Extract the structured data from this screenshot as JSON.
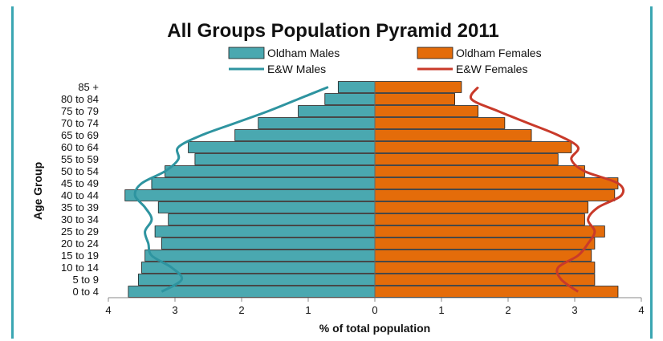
{
  "chart_data": {
    "type": "bar",
    "title": "All Groups Population Pyramid 2011",
    "xlabel": "% of total population",
    "ylabel": "Age Group",
    "xlim": [
      -4,
      4
    ],
    "x_ticks": [
      -4,
      -3,
      -2,
      -1,
      0,
      1,
      2,
      3,
      4
    ],
    "x_tick_labels": [
      "4",
      "3",
      "2",
      "1",
      "0",
      "1",
      "2",
      "3",
      "4"
    ],
    "categories": [
      "0 to 4",
      "5 to 9",
      "10 to 14",
      "15 to 19",
      "20 to 24",
      "25 to 29",
      "30 to 34",
      "35 to 39",
      "40 to 44",
      "45 to 49",
      "50 to 54",
      "55 to 59",
      "60 to 64",
      "65 to 69",
      "70 to 74",
      "75 to 79",
      "80 to 84",
      "85 +"
    ],
    "series": [
      {
        "name": "Oldham Males",
        "kind": "bar",
        "color": "#4aa8b0",
        "values": [
          3.7,
          3.55,
          3.5,
          3.45,
          3.2,
          3.3,
          3.1,
          3.25,
          3.75,
          3.35,
          3.15,
          2.7,
          2.8,
          2.1,
          1.75,
          1.15,
          0.75,
          0.55
        ]
      },
      {
        "name": "Oldham Females",
        "kind": "bar",
        "color": "#e46c0a",
        "values": [
          3.65,
          3.3,
          3.3,
          3.25,
          3.3,
          3.45,
          3.15,
          3.2,
          3.6,
          3.65,
          3.15,
          2.75,
          2.95,
          2.35,
          1.95,
          1.55,
          1.2,
          1.3
        ]
      },
      {
        "name": "E&W Males",
        "kind": "line",
        "color": "#2e94a0",
        "values": [
          3.2,
          2.9,
          3.05,
          3.35,
          3.4,
          3.45,
          3.35,
          3.45,
          3.6,
          3.5,
          3.15,
          2.95,
          2.95,
          2.6,
          2.1,
          1.6,
          1.15,
          0.7
        ]
      },
      {
        "name": "E&W Females",
        "kind": "line",
        "color": "#c93a2a",
        "values": [
          3.05,
          2.8,
          2.75,
          3.05,
          3.2,
          3.3,
          3.2,
          3.35,
          3.7,
          3.65,
          3.15,
          2.95,
          3.05,
          2.75,
          2.3,
          1.85,
          1.45,
          1.55
        ]
      }
    ],
    "legend_position": "top",
    "grid": false
  }
}
